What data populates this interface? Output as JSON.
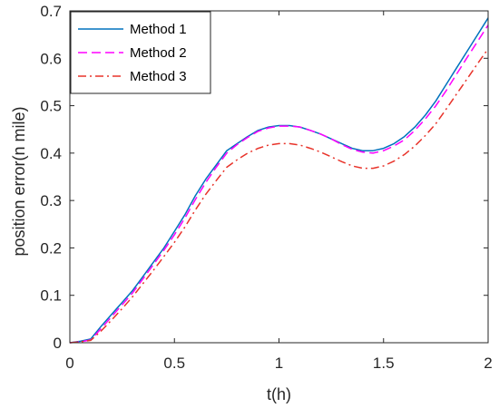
{
  "chart_data": {
    "type": "line",
    "title": "",
    "xlabel": "t(h)",
    "ylabel": "position error(n mile)",
    "xlim": [
      0,
      2
    ],
    "ylim": [
      0,
      0.7
    ],
    "xticks": [
      0,
      0.5,
      1,
      1.5,
      2
    ],
    "xtick_labels": [
      "0",
      "0.5",
      "1",
      "1.5",
      "2"
    ],
    "yticks": [
      0,
      0.1,
      0.2,
      0.3,
      0.4,
      0.5,
      0.6,
      0.7
    ],
    "ytick_labels": [
      "0",
      "0.1",
      "0.2",
      "0.3",
      "0.4",
      "0.5",
      "0.6",
      "0.7"
    ],
    "grid": false,
    "legend_position": "top-left",
    "x": [
      0,
      0.05,
      0.1,
      0.15,
      0.2,
      0.25,
      0.3,
      0.35,
      0.4,
      0.45,
      0.5,
      0.55,
      0.6,
      0.65,
      0.7,
      0.75,
      0.8,
      0.85,
      0.9,
      0.95,
      1.0,
      1.05,
      1.1,
      1.15,
      1.2,
      1.25,
      1.3,
      1.35,
      1.4,
      1.45,
      1.5,
      1.55,
      1.6,
      1.65,
      1.7,
      1.75,
      1.8,
      1.85,
      1.9,
      1.95,
      2.0
    ],
    "series": [
      {
        "name": "Method 1",
        "color": "#0072BD",
        "style": "solid",
        "values": [
          0.0,
          0.003,
          0.008,
          0.035,
          0.06,
          0.085,
          0.11,
          0.14,
          0.17,
          0.2,
          0.235,
          0.27,
          0.31,
          0.345,
          0.375,
          0.405,
          0.42,
          0.435,
          0.448,
          0.455,
          0.458,
          0.458,
          0.455,
          0.448,
          0.44,
          0.43,
          0.42,
          0.41,
          0.405,
          0.405,
          0.41,
          0.42,
          0.435,
          0.455,
          0.48,
          0.51,
          0.545,
          0.58,
          0.615,
          0.65,
          0.685
        ]
      },
      {
        "name": "Method 2",
        "color": "#FF00FF",
        "style": "dashed",
        "values": [
          0.0,
          0.002,
          0.006,
          0.03,
          0.055,
          0.08,
          0.105,
          0.135,
          0.165,
          0.195,
          0.228,
          0.263,
          0.302,
          0.338,
          0.37,
          0.4,
          0.418,
          0.433,
          0.446,
          0.453,
          0.457,
          0.457,
          0.455,
          0.448,
          0.44,
          0.43,
          0.418,
          0.408,
          0.402,
          0.4,
          0.405,
          0.415,
          0.428,
          0.448,
          0.472,
          0.5,
          0.532,
          0.567,
          0.602,
          0.636,
          0.67
        ]
      },
      {
        "name": "Method 3",
        "color": "#E8332A",
        "style": "dashdot",
        "values": [
          0.0,
          0.002,
          0.005,
          0.025,
          0.048,
          0.072,
          0.097,
          0.125,
          0.153,
          0.182,
          0.212,
          0.244,
          0.28,
          0.313,
          0.342,
          0.37,
          0.386,
          0.4,
          0.41,
          0.417,
          0.42,
          0.42,
          0.417,
          0.41,
          0.402,
          0.392,
          0.382,
          0.373,
          0.368,
          0.368,
          0.373,
          0.383,
          0.397,
          0.415,
          0.437,
          0.462,
          0.493,
          0.525,
          0.557,
          0.589,
          0.62
        ]
      }
    ]
  }
}
